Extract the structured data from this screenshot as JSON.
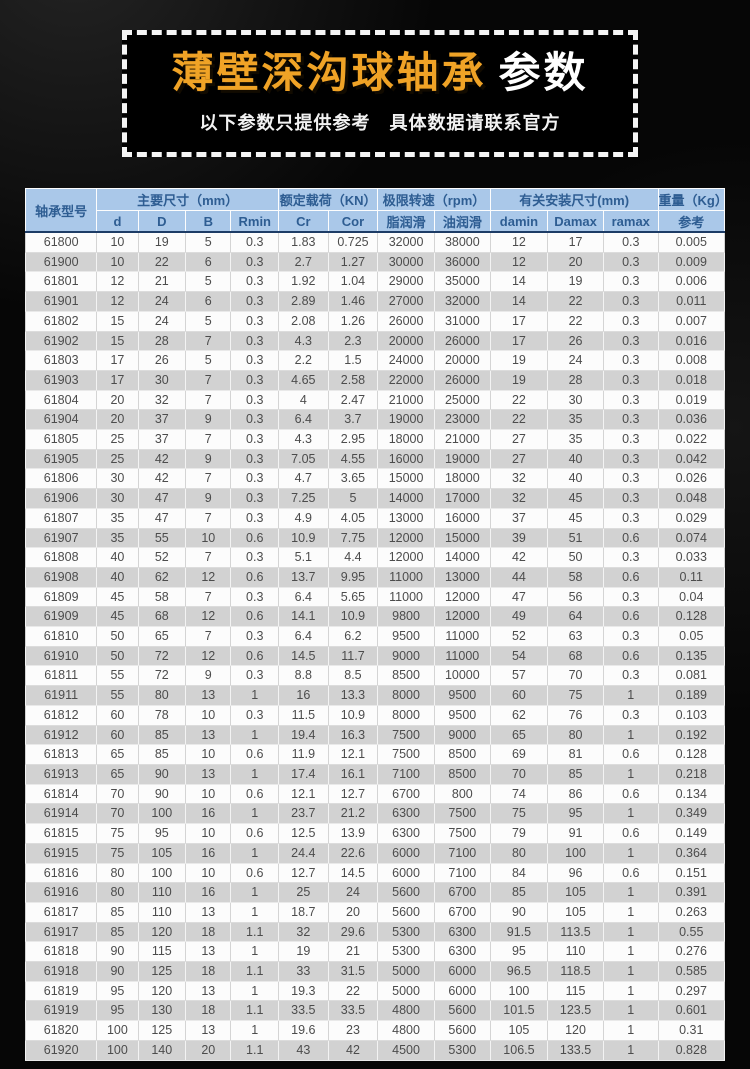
{
  "banner": {
    "title_highlight": "薄壁深沟球轴承",
    "title_suffix": "参数",
    "subtitle": "以下参数只提供参考　具体数据请联系官方"
  },
  "colors": {
    "accent_orange": "#f0a326",
    "banner_border_white": "#f5f5f5",
    "header_bg_blue": "#aac8e9",
    "header_text_blue": "#2e5d92",
    "header_divider_navy": "#1d3c66",
    "row_alt_gray": "#d2d2d2",
    "body_text_gray": "#4c4c4c",
    "page_background": "#060606"
  },
  "table": {
    "header": {
      "model": "轴承型号",
      "groups": [
        {
          "label": "主要尺寸（mm）",
          "span": 4
        },
        {
          "label": "额定载荷（KN）",
          "span": 2
        },
        {
          "label": "极限转速（rpm）",
          "span": 2
        },
        {
          "label": "有关安装尺寸(mm)",
          "span": 3
        },
        {
          "label": "重量（Kg）",
          "span": 1
        }
      ],
      "subcols": [
        "d",
        "D",
        "B",
        "Rmin",
        "Cr",
        "Cor",
        "脂润滑",
        "油润滑",
        "damin",
        "Damax",
        "ramax",
        "参考"
      ]
    },
    "rows": [
      [
        "61800",
        "10",
        "19",
        "5",
        "0.3",
        "1.83",
        "0.725",
        "32000",
        "38000",
        "12",
        "17",
        "0.3",
        "0.005"
      ],
      [
        "61900",
        "10",
        "22",
        "6",
        "0.3",
        "2.7",
        "1.27",
        "30000",
        "36000",
        "12",
        "20",
        "0.3",
        "0.009"
      ],
      [
        "61801",
        "12",
        "21",
        "5",
        "0.3",
        "1.92",
        "1.04",
        "29000",
        "35000",
        "14",
        "19",
        "0.3",
        "0.006"
      ],
      [
        "61901",
        "12",
        "24",
        "6",
        "0.3",
        "2.89",
        "1.46",
        "27000",
        "32000",
        "14",
        "22",
        "0.3",
        "0.011"
      ],
      [
        "61802",
        "15",
        "24",
        "5",
        "0.3",
        "2.08",
        "1.26",
        "26000",
        "31000",
        "17",
        "22",
        "0.3",
        "0.007"
      ],
      [
        "61902",
        "15",
        "28",
        "7",
        "0.3",
        "4.3",
        "2.3",
        "20000",
        "26000",
        "17",
        "26",
        "0.3",
        "0.016"
      ],
      [
        "61803",
        "17",
        "26",
        "5",
        "0.3",
        "2.2",
        "1.5",
        "24000",
        "20000",
        "19",
        "24",
        "0.3",
        "0.008"
      ],
      [
        "61903",
        "17",
        "30",
        "7",
        "0.3",
        "4.65",
        "2.58",
        "22000",
        "26000",
        "19",
        "28",
        "0.3",
        "0.018"
      ],
      [
        "61804",
        "20",
        "32",
        "7",
        "0.3",
        "4",
        "2.47",
        "21000",
        "25000",
        "22",
        "30",
        "0.3",
        "0.019"
      ],
      [
        "61904",
        "20",
        "37",
        "9",
        "0.3",
        "6.4",
        "3.7",
        "19000",
        "23000",
        "22",
        "35",
        "0.3",
        "0.036"
      ],
      [
        "61805",
        "25",
        "37",
        "7",
        "0.3",
        "4.3",
        "2.95",
        "18000",
        "21000",
        "27",
        "35",
        "0.3",
        "0.022"
      ],
      [
        "61905",
        "25",
        "42",
        "9",
        "0.3",
        "7.05",
        "4.55",
        "16000",
        "19000",
        "27",
        "40",
        "0.3",
        "0.042"
      ],
      [
        "61806",
        "30",
        "42",
        "7",
        "0.3",
        "4.7",
        "3.65",
        "15000",
        "18000",
        "32",
        "40",
        "0.3",
        "0.026"
      ],
      [
        "61906",
        "30",
        "47",
        "9",
        "0.3",
        "7.25",
        "5",
        "14000",
        "17000",
        "32",
        "45",
        "0.3",
        "0.048"
      ],
      [
        "61807",
        "35",
        "47",
        "7",
        "0.3",
        "4.9",
        "4.05",
        "13000",
        "16000",
        "37",
        "45",
        "0.3",
        "0.029"
      ],
      [
        "61907",
        "35",
        "55",
        "10",
        "0.6",
        "10.9",
        "7.75",
        "12000",
        "15000",
        "39",
        "51",
        "0.6",
        "0.074"
      ],
      [
        "61808",
        "40",
        "52",
        "7",
        "0.3",
        "5.1",
        "4.4",
        "12000",
        "14000",
        "42",
        "50",
        "0.3",
        "0.033"
      ],
      [
        "61908",
        "40",
        "62",
        "12",
        "0.6",
        "13.7",
        "9.95",
        "11000",
        "13000",
        "44",
        "58",
        "0.6",
        "0.11"
      ],
      [
        "61809",
        "45",
        "58",
        "7",
        "0.3",
        "6.4",
        "5.65",
        "11000",
        "12000",
        "47",
        "56",
        "0.3",
        "0.04"
      ],
      [
        "61909",
        "45",
        "68",
        "12",
        "0.6",
        "14.1",
        "10.9",
        "9800",
        "12000",
        "49",
        "64",
        "0.6",
        "0.128"
      ],
      [
        "61810",
        "50",
        "65",
        "7",
        "0.3",
        "6.4",
        "6.2",
        "9500",
        "11000",
        "52",
        "63",
        "0.3",
        "0.05"
      ],
      [
        "61910",
        "50",
        "72",
        "12",
        "0.6",
        "14.5",
        "11.7",
        "9000",
        "11000",
        "54",
        "68",
        "0.6",
        "0.135"
      ],
      [
        "61811",
        "55",
        "72",
        "9",
        "0.3",
        "8.8",
        "8.5",
        "8500",
        "10000",
        "57",
        "70",
        "0.3",
        "0.081"
      ],
      [
        "61911",
        "55",
        "80",
        "13",
        "1",
        "16",
        "13.3",
        "8000",
        "9500",
        "60",
        "75",
        "1",
        "0.189"
      ],
      [
        "61812",
        "60",
        "78",
        "10",
        "0.3",
        "11.5",
        "10.9",
        "8000",
        "9500",
        "62",
        "76",
        "0.3",
        "0.103"
      ],
      [
        "61912",
        "60",
        "85",
        "13",
        "1",
        "19.4",
        "16.3",
        "7500",
        "9000",
        "65",
        "80",
        "1",
        "0.192"
      ],
      [
        "61813",
        "65",
        "85",
        "10",
        "0.6",
        "11.9",
        "12.1",
        "7500",
        "8500",
        "69",
        "81",
        "0.6",
        "0.128"
      ],
      [
        "61913",
        "65",
        "90",
        "13",
        "1",
        "17.4",
        "16.1",
        "7100",
        "8500",
        "70",
        "85",
        "1",
        "0.218"
      ],
      [
        "61814",
        "70",
        "90",
        "10",
        "0.6",
        "12.1",
        "12.7",
        "6700",
        "800",
        "74",
        "86",
        "0.6",
        "0.134"
      ],
      [
        "61914",
        "70",
        "100",
        "16",
        "1",
        "23.7",
        "21.2",
        "6300",
        "7500",
        "75",
        "95",
        "1",
        "0.349"
      ],
      [
        "61815",
        "75",
        "95",
        "10",
        "0.6",
        "12.5",
        "13.9",
        "6300",
        "7500",
        "79",
        "91",
        "0.6",
        "0.149"
      ],
      [
        "61915",
        "75",
        "105",
        "16",
        "1",
        "24.4",
        "22.6",
        "6000",
        "7100",
        "80",
        "100",
        "1",
        "0.364"
      ],
      [
        "61816",
        "80",
        "100",
        "10",
        "0.6",
        "12.7",
        "14.5",
        "6000",
        "7100",
        "84",
        "96",
        "0.6",
        "0.151"
      ],
      [
        "61916",
        "80",
        "110",
        "16",
        "1",
        "25",
        "24",
        "5600",
        "6700",
        "85",
        "105",
        "1",
        "0.391"
      ],
      [
        "61817",
        "85",
        "110",
        "13",
        "1",
        "18.7",
        "20",
        "5600",
        "6700",
        "90",
        "105",
        "1",
        "0.263"
      ],
      [
        "61917",
        "85",
        "120",
        "18",
        "1.1",
        "32",
        "29.6",
        "5300",
        "6300",
        "91.5",
        "113.5",
        "1",
        "0.55"
      ],
      [
        "61818",
        "90",
        "115",
        "13",
        "1",
        "19",
        "21",
        "5300",
        "6300",
        "95",
        "110",
        "1",
        "0.276"
      ],
      [
        "61918",
        "90",
        "125",
        "18",
        "1.1",
        "33",
        "31.5",
        "5000",
        "6000",
        "96.5",
        "118.5",
        "1",
        "0.585"
      ],
      [
        "61819",
        "95",
        "120",
        "13",
        "1",
        "19.3",
        "22",
        "5000",
        "6000",
        "100",
        "115",
        "1",
        "0.297"
      ],
      [
        "61919",
        "95",
        "130",
        "18",
        "1.1",
        "33.5",
        "33.5",
        "4800",
        "5600",
        "101.5",
        "123.5",
        "1",
        "0.601"
      ],
      [
        "61820",
        "100",
        "125",
        "13",
        "1",
        "19.6",
        "23",
        "4800",
        "5600",
        "105",
        "120",
        "1",
        "0.31"
      ],
      [
        "61920",
        "100",
        "140",
        "20",
        "1.1",
        "43",
        "42",
        "4500",
        "5300",
        "106.5",
        "133.5",
        "1",
        "0.828"
      ]
    ]
  }
}
